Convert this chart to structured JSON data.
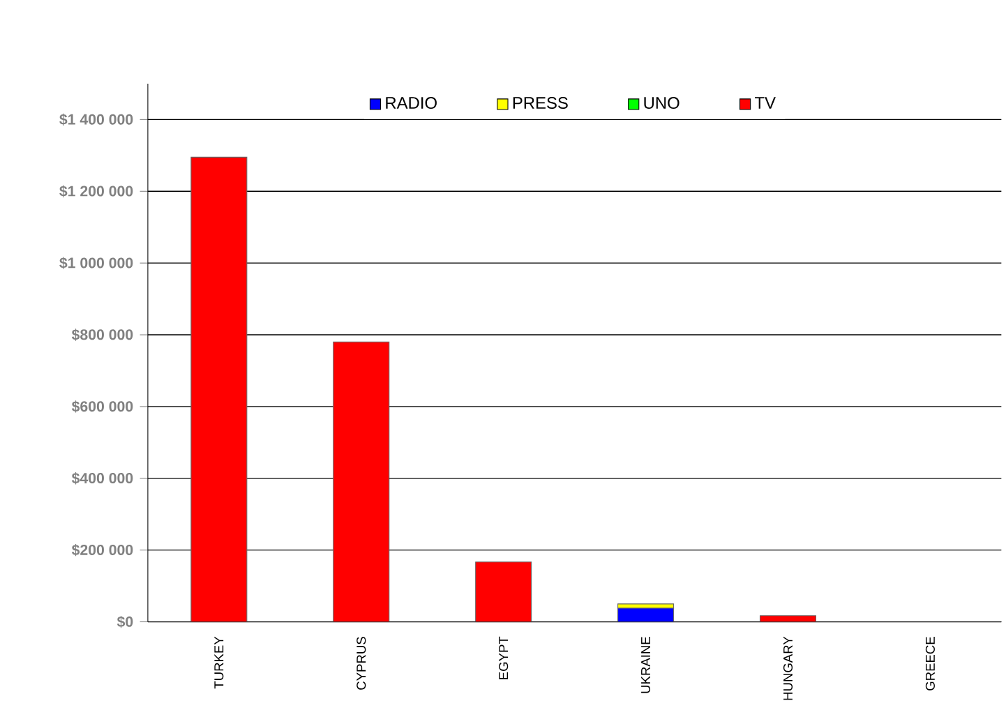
{
  "chart_data": {
    "type": "bar",
    "stacked": true,
    "categories": [
      "TURKEY",
      "CYPRUS",
      "EGYPT",
      "UKRAINE",
      "HUNGARY",
      "GREECE"
    ],
    "series": [
      {
        "name": "RADIO",
        "color": "#0000ff",
        "values": [
          0,
          0,
          0,
          38000,
          0,
          0
        ]
      },
      {
        "name": "PRESS",
        "color": "#ffff00",
        "values": [
          0,
          0,
          0,
          12000,
          0,
          0
        ]
      },
      {
        "name": "UNO",
        "color": "#00ff00",
        "values": [
          0,
          0,
          0,
          0,
          0,
          0
        ]
      },
      {
        "name": "TV",
        "color": "#ff0000",
        "values": [
          1295000,
          780000,
          167000,
          0,
          17000,
          0
        ]
      }
    ],
    "ylim": [
      0,
      1500000
    ],
    "yticks": [
      {
        "value": 0,
        "label": "$0"
      },
      {
        "value": 200000,
        "label": "$200 000"
      },
      {
        "value": 400000,
        "label": "$400 000"
      },
      {
        "value": 600000,
        "label": "$600 000"
      },
      {
        "value": 800000,
        "label": "$800 000"
      },
      {
        "value": 1000000,
        "label": "$1 000 000"
      },
      {
        "value": 1200000,
        "label": "$1 200 000"
      },
      {
        "value": 1400000,
        "label": "$1 400 000"
      }
    ],
    "grid": "y",
    "legend": "top"
  }
}
